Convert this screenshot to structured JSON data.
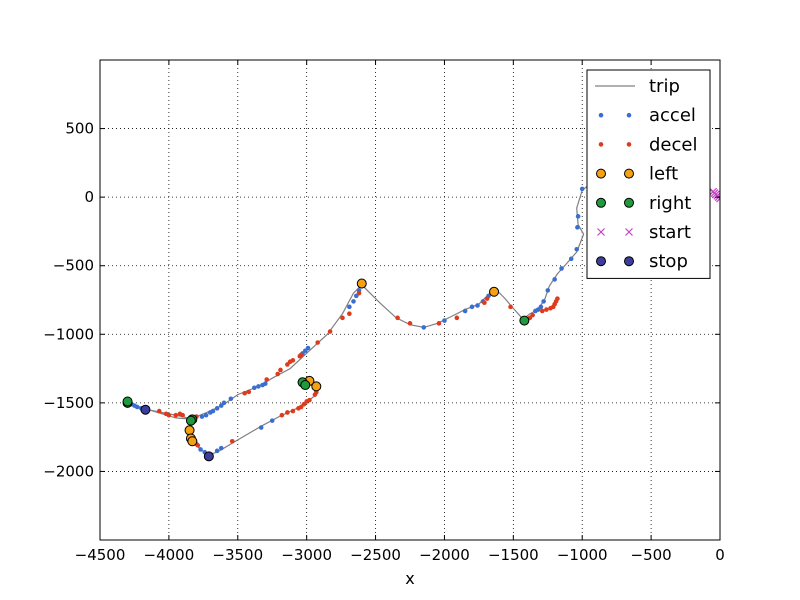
{
  "chart_data": {
    "type": "line",
    "title": "",
    "xlabel": "x",
    "ylabel": "",
    "xlim": [
      -4500,
      0
    ],
    "ylim": [
      -2500,
      1000
    ],
    "grid": true,
    "grid_style": "dotted",
    "legend_position": "top-right",
    "x_ticks": [
      -4500,
      -4000,
      -3500,
      -3000,
      -2500,
      -2000,
      -1500,
      -1000,
      -500,
      0
    ],
    "x_tick_labels": [
      "−4500",
      "−4000",
      "−3500",
      "−3000",
      "−2500",
      "−2000",
      "−1500",
      "−1000",
      "−500",
      "0"
    ],
    "y_ticks": [
      500,
      0,
      -500,
      -1000,
      -1500,
      -2000
    ],
    "y_tick_labels": [
      "500",
      "0",
      "−500",
      "−1000",
      "−1500",
      "−2000"
    ],
    "series": [
      {
        "name": "trip",
        "kind": "line",
        "color": "#808080",
        "points": [
          [
            0,
            0
          ],
          [
            -80,
            60
          ],
          [
            -250,
            150
          ],
          [
            -450,
            230
          ],
          [
            -700,
            220
          ],
          [
            -900,
            130
          ],
          [
            -1000,
            50
          ],
          [
            -1040,
            -80
          ],
          [
            -1030,
            -200
          ],
          [
            -990,
            -270
          ],
          [
            -1040,
            -400
          ],
          [
            -1110,
            -480
          ],
          [
            -1180,
            -560
          ],
          [
            -1240,
            -650
          ],
          [
            -1270,
            -740
          ],
          [
            -1320,
            -820
          ],
          [
            -1380,
            -850
          ],
          [
            -1430,
            -890
          ],
          [
            -1510,
            -800
          ],
          [
            -1560,
            -740
          ],
          [
            -1600,
            -700
          ],
          [
            -1630,
            -680
          ],
          [
            -1680,
            -710
          ],
          [
            -1750,
            -780
          ],
          [
            -1850,
            -820
          ],
          [
            -1950,
            -870
          ],
          [
            -2050,
            -920
          ],
          [
            -2150,
            -950
          ],
          [
            -2250,
            -930
          ],
          [
            -2350,
            -880
          ],
          [
            -2470,
            -770
          ],
          [
            -2600,
            -640
          ],
          [
            -2660,
            -700
          ],
          [
            -2740,
            -850
          ],
          [
            -2850,
            -1000
          ],
          [
            -2980,
            -1120
          ],
          [
            -3120,
            -1250
          ],
          [
            -3250,
            -1320
          ],
          [
            -3350,
            -1380
          ],
          [
            -3500,
            -1440
          ],
          [
            -3600,
            -1510
          ],
          [
            -3700,
            -1560
          ],
          [
            -3800,
            -1600
          ],
          [
            -3830,
            -1620
          ],
          [
            -3950,
            -1610
          ],
          [
            -4080,
            -1570
          ],
          [
            -4180,
            -1540
          ],
          [
            -4300,
            -1500
          ],
          [
            -4180,
            -1545
          ],
          [
            -3900,
            -1600
          ],
          [
            -3840,
            -1620
          ],
          [
            -3850,
            -1690
          ],
          [
            -3840,
            -1760
          ],
          [
            -3790,
            -1820
          ],
          [
            -3720,
            -1880
          ],
          [
            -3650,
            -1860
          ],
          [
            -3500,
            -1770
          ],
          [
            -3330,
            -1670
          ],
          [
            -3200,
            -1600
          ],
          [
            -3070,
            -1540
          ],
          [
            -2980,
            -1480
          ],
          [
            -2920,
            -1430
          ],
          [
            -2920,
            -1370
          ],
          [
            -2970,
            -1340
          ],
          [
            -3010,
            -1360
          ],
          [
            -3030,
            -1350
          ]
        ]
      },
      {
        "name": "accel",
        "kind": "markers",
        "marker": "dot",
        "color": "#3a6fd0",
        "points": [
          [
            -1000,
            60
          ],
          [
            -1030,
            -140
          ],
          [
            -1035,
            -220
          ],
          [
            -1040,
            -380
          ],
          [
            -1080,
            -450
          ],
          [
            -1150,
            -520
          ],
          [
            -1200,
            -600
          ],
          [
            -1250,
            -680
          ],
          [
            -1280,
            -760
          ],
          [
            -1300,
            -800
          ],
          [
            -1320,
            -820
          ],
          [
            -1340,
            -830
          ],
          [
            -1620,
            -690
          ],
          [
            -1680,
            -720
          ],
          [
            -1720,
            -760
          ],
          [
            -1760,
            -790
          ],
          [
            -1800,
            -800
          ],
          [
            -1850,
            -830
          ],
          [
            -2000,
            -900
          ],
          [
            -2150,
            -950
          ],
          [
            -2600,
            -650
          ],
          [
            -2620,
            -680
          ],
          [
            -2640,
            -720
          ],
          [
            -2660,
            -760
          ],
          [
            -2690,
            -800
          ],
          [
            -2990,
            -1100
          ],
          [
            -3010,
            -1120
          ],
          [
            -3030,
            -1140
          ],
          [
            -3300,
            -1360
          ],
          [
            -3320,
            -1370
          ],
          [
            -3350,
            -1380
          ],
          [
            -3380,
            -1390
          ],
          [
            -3550,
            -1470
          ],
          [
            -3600,
            -1500
          ],
          [
            -3620,
            -1520
          ],
          [
            -3650,
            -1540
          ],
          [
            -3680,
            -1560
          ],
          [
            -3700,
            -1570
          ],
          [
            -3730,
            -1590
          ],
          [
            -3760,
            -1600
          ],
          [
            -4200,
            -1540
          ],
          [
            -4230,
            -1530
          ],
          [
            -4250,
            -1520
          ],
          [
            -4270,
            -1510
          ],
          [
            -3800,
            -1800
          ],
          [
            -3770,
            -1840
          ],
          [
            -3740,
            -1860
          ],
          [
            -3650,
            -1850
          ],
          [
            -3620,
            -1830
          ],
          [
            -3330,
            -1680
          ],
          [
            -3250,
            -1630
          ]
        ]
      },
      {
        "name": "decel",
        "kind": "markers",
        "marker": "dot",
        "color": "#e03a1c",
        "points": [
          [
            -1180,
            -740
          ],
          [
            -1190,
            -760
          ],
          [
            -1200,
            -780
          ],
          [
            -1210,
            -800
          ],
          [
            -1230,
            -810
          ],
          [
            -1260,
            -820
          ],
          [
            -1290,
            -830
          ],
          [
            -1360,
            -860
          ],
          [
            -1380,
            -880
          ],
          [
            -1400,
            -890
          ],
          [
            -1520,
            -800
          ],
          [
            -1660,
            -700
          ],
          [
            -1690,
            -740
          ],
          [
            -1710,
            -770
          ],
          [
            -1910,
            -880
          ],
          [
            -2040,
            -920
          ],
          [
            -2250,
            -920
          ],
          [
            -2340,
            -880
          ],
          [
            -2620,
            -700
          ],
          [
            -2690,
            -850
          ],
          [
            -2740,
            -880
          ],
          [
            -2830,
            -980
          ],
          [
            -2920,
            -1060
          ],
          [
            -3040,
            -1150
          ],
          [
            -3050,
            -1160
          ],
          [
            -3100,
            -1190
          ],
          [
            -3120,
            -1200
          ],
          [
            -3140,
            -1220
          ],
          [
            -3190,
            -1260
          ],
          [
            -3210,
            -1290
          ],
          [
            -3290,
            -1330
          ],
          [
            -3420,
            -1420
          ],
          [
            -3450,
            -1430
          ],
          [
            -3800,
            -1600
          ],
          [
            -3820,
            -1610
          ],
          [
            -3850,
            -1620
          ],
          [
            -3900,
            -1590
          ],
          [
            -3920,
            -1580
          ],
          [
            -3950,
            -1590
          ],
          [
            -4000,
            -1590
          ],
          [
            -4020,
            -1580
          ],
          [
            -4070,
            -1560
          ],
          [
            -3810,
            -1780
          ],
          [
            -3790,
            -1810
          ],
          [
            -3540,
            -1780
          ],
          [
            -3180,
            -1590
          ],
          [
            -3140,
            -1570
          ],
          [
            -3100,
            -1560
          ],
          [
            -3060,
            -1540
          ],
          [
            -3040,
            -1530
          ],
          [
            -3020,
            -1510
          ],
          [
            -3000,
            -1490
          ],
          [
            -2980,
            -1480
          ],
          [
            -2940,
            -1440
          ],
          [
            -2930,
            -1420
          ]
        ]
      },
      {
        "name": "left",
        "kind": "markers",
        "marker": "circle",
        "color": "#f5a113",
        "points": [
          [
            -2600,
            -630
          ],
          [
            -1640,
            -690
          ],
          [
            -3850,
            -1700
          ],
          [
            -3840,
            -1760
          ],
          [
            -3830,
            -1780
          ],
          [
            -2980,
            -1340
          ],
          [
            -2930,
            -1380
          ]
        ]
      },
      {
        "name": "right",
        "kind": "markers",
        "marker": "circle",
        "color": "#1f9a3d",
        "points": [
          [
            -4300,
            -1500
          ],
          [
            -4300,
            -1490
          ],
          [
            -3830,
            -1620
          ],
          [
            -3840,
            -1630
          ],
          [
            -3030,
            -1350
          ],
          [
            -3010,
            -1370
          ],
          [
            -1420,
            -900
          ]
        ]
      },
      {
        "name": "start",
        "kind": "markers",
        "marker": "x",
        "color": "#c640c6",
        "points": [
          [
            -50,
            40
          ],
          [
            -30,
            20
          ],
          [
            -10,
            0
          ],
          [
            0,
            -10
          ],
          [
            -20,
            10
          ],
          [
            -40,
            30
          ]
        ]
      },
      {
        "name": "stop",
        "kind": "markers",
        "marker": "circle",
        "color": "#3d3d9e",
        "points": [
          [
            -4170,
            -1550
          ],
          [
            -3710,
            -1890
          ]
        ]
      }
    ]
  }
}
